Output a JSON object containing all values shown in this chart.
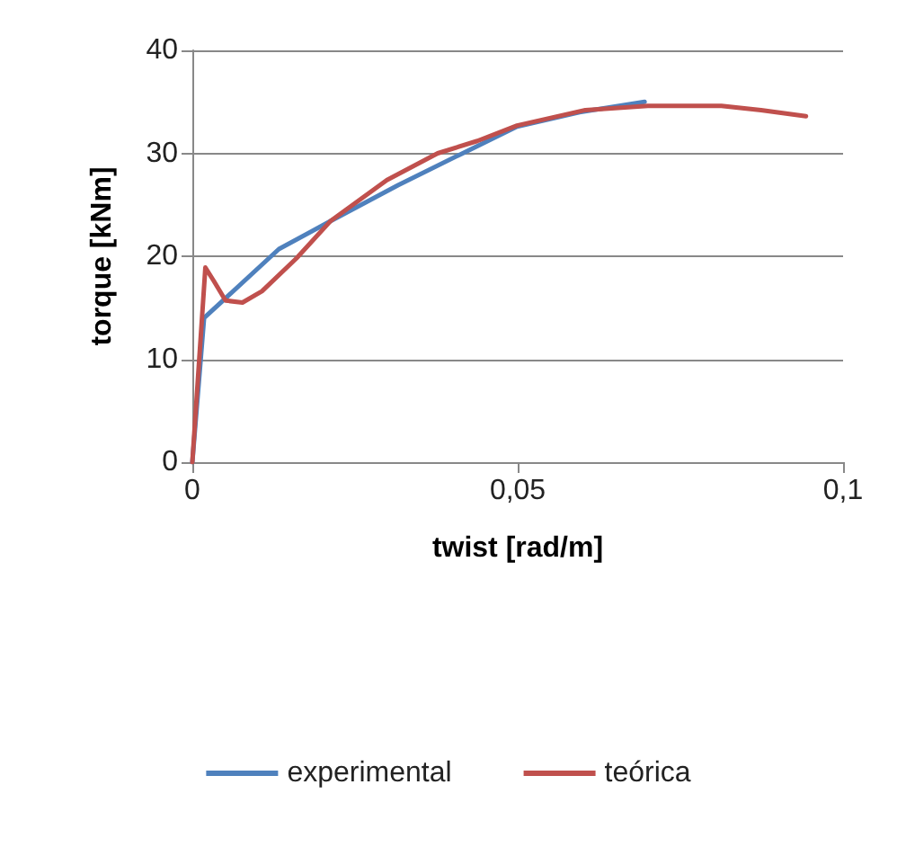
{
  "chart_data": {
    "type": "line",
    "xlabel": "twist [rad/m]",
    "ylabel": "torque [kNm]",
    "xlim": [
      0,
      0.1
    ],
    "xticks": [
      0,
      {
        "value": 0.05,
        "label": "0,05"
      },
      {
        "value": 0.1,
        "label": "0,1"
      }
    ],
    "ylim": [
      0,
      40
    ],
    "yticks": [
      0,
      10,
      20,
      30,
      40
    ],
    "grid": "y",
    "legend": "bottom",
    "marker": "none",
    "line_style": "solid",
    "series": [
      {
        "name": "experimental",
        "color": "#4f81bd",
        "x": [
          0,
          0.0018,
          0.0133,
          0.0212,
          0.0316,
          0.0412,
          0.0499,
          0.0595,
          0.0695
        ],
        "values": [
          0,
          14.0,
          20.7,
          23.4,
          26.9,
          29.9,
          32.6,
          34.0,
          35.0
        ]
      },
      {
        "name": "teórica",
        "color": "#c0504d",
        "x": [
          0,
          0.002,
          0.0033,
          0.0051,
          0.0077,
          0.0107,
          0.016,
          0.0212,
          0.0299,
          0.0377,
          0.0438,
          0.0499,
          0.0604,
          0.07,
          0.0813,
          0.0874,
          0.0943
        ],
        "values": [
          0,
          18.9,
          17.6,
          15.7,
          15.5,
          16.6,
          19.8,
          23.4,
          27.4,
          30.0,
          31.2,
          32.7,
          34.2,
          34.6,
          34.6,
          34.2,
          33.6
        ]
      }
    ]
  }
}
